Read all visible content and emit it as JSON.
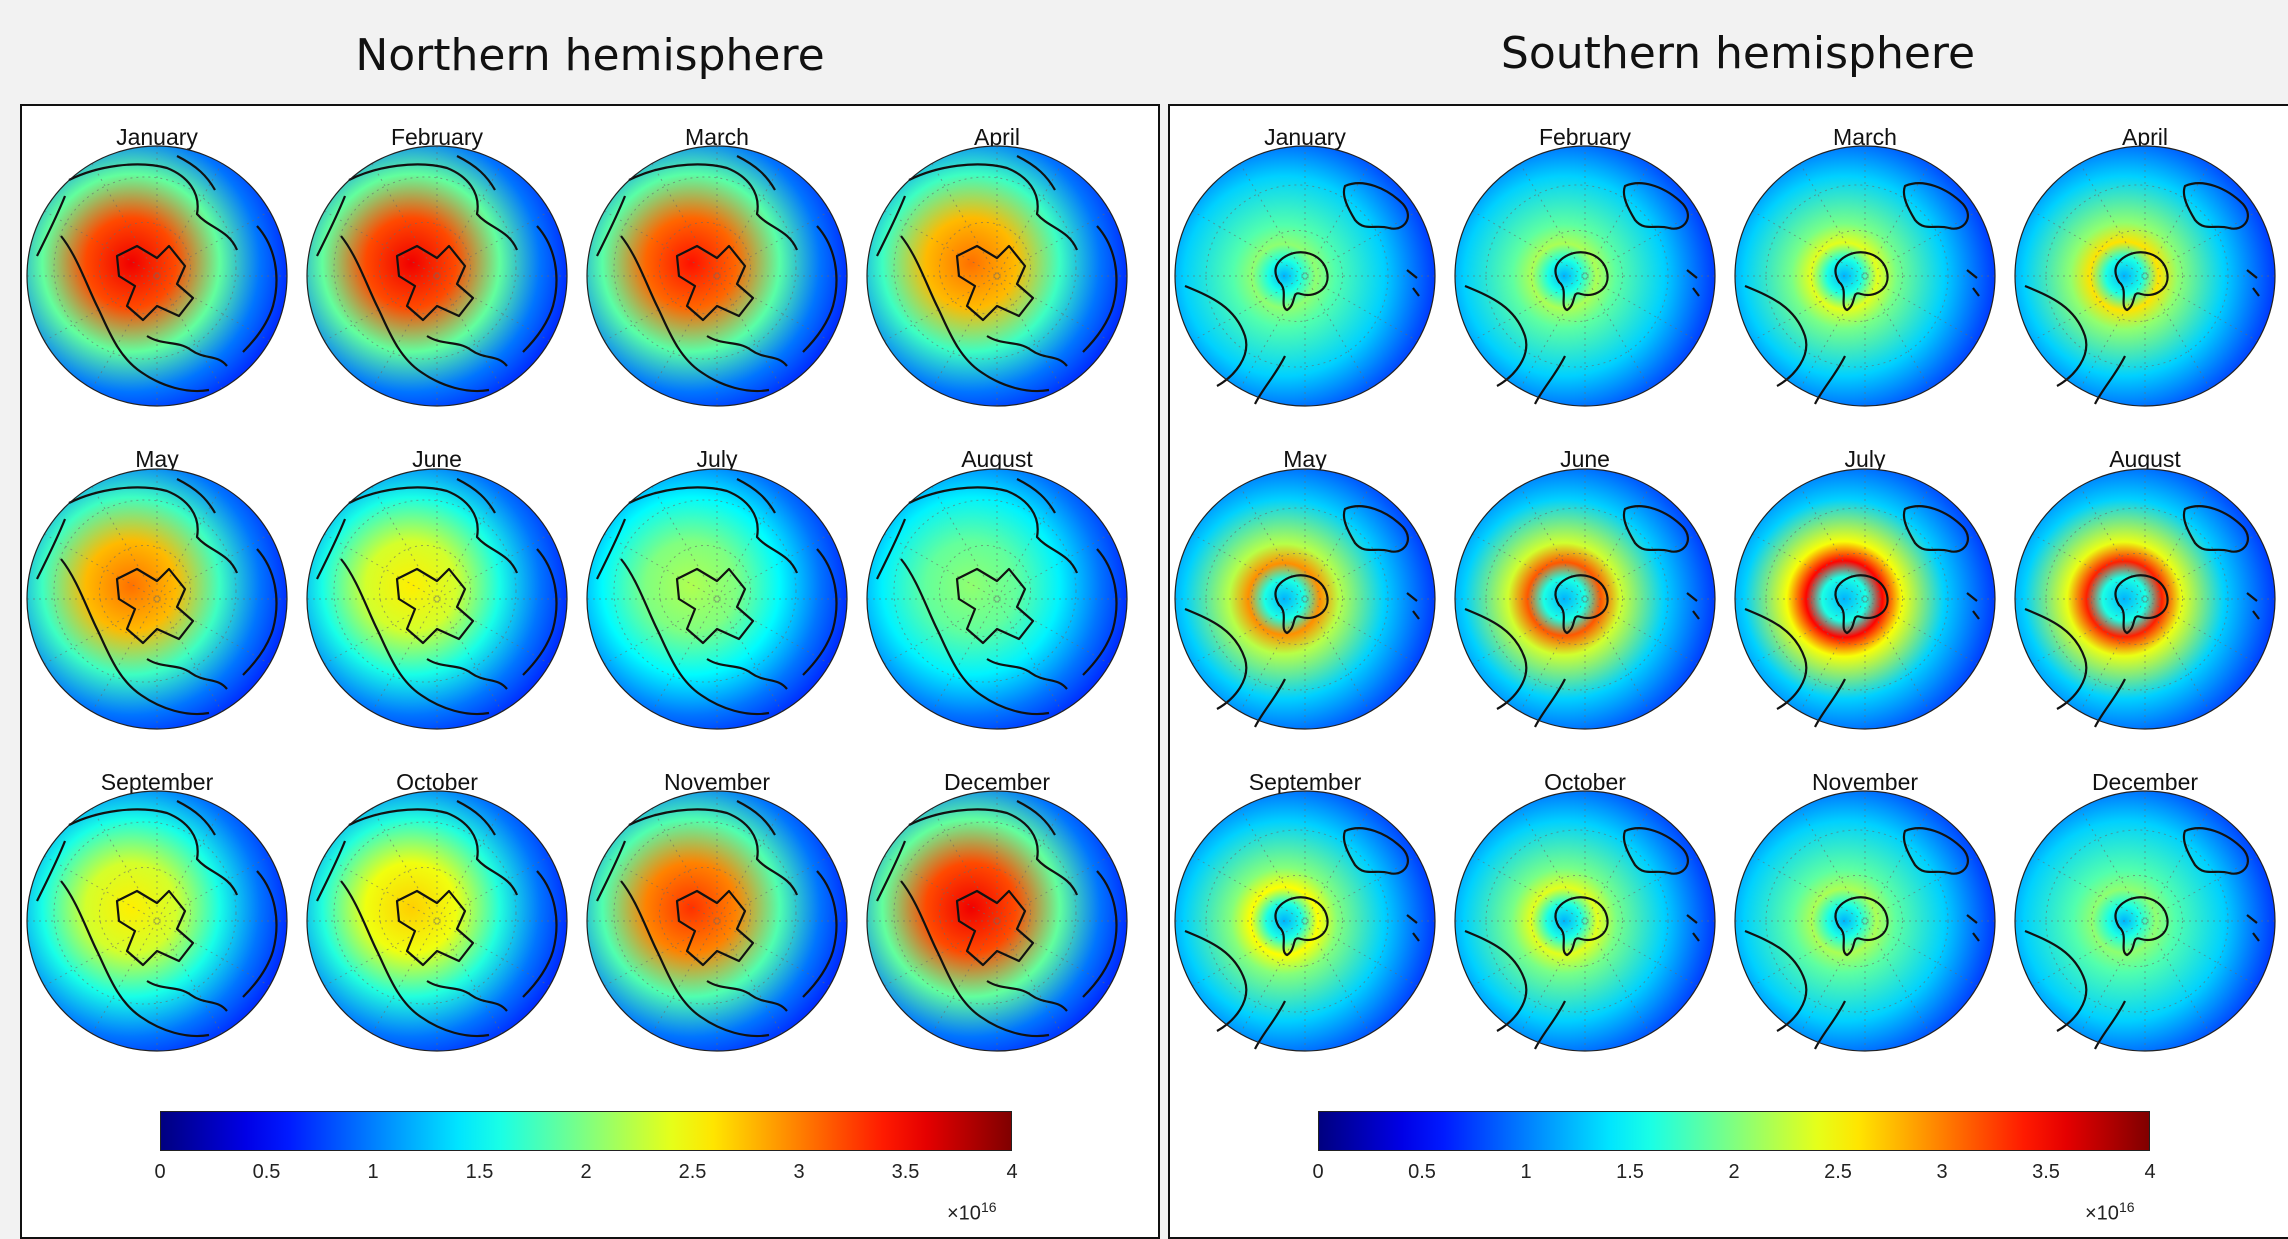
{
  "figure": {
    "left_title": "Northern hemisphere",
    "right_title": "Southern hemisphere"
  },
  "colors": {
    "background": "#f2f2f2",
    "panel": "#ffffff",
    "border": "#111111"
  },
  "chart_data": [
    {
      "type": "heatmap",
      "hemisphere": "Northern hemisphere",
      "panels": [
        "January",
        "February",
        "March",
        "April",
        "May",
        "June",
        "July",
        "August",
        "September",
        "October",
        "November",
        "December"
      ],
      "colorbar": {
        "colormap": "jet",
        "ticks": [
          0,
          0.5,
          1,
          1.5,
          2,
          2.5,
          3,
          3.5,
          4
        ],
        "tick_labels": [
          "0",
          "0.5",
          "1",
          "1.5",
          "2",
          "2.5",
          "3",
          "3.5",
          "4"
        ],
        "range": [
          0,
          4
        ],
        "multiplier_base": "×10",
        "multiplier_exp": "16"
      },
      "relative_intensity": [
        0.95,
        0.95,
        0.9,
        0.75,
        0.75,
        0.55,
        0.4,
        0.35,
        0.55,
        0.6,
        0.85,
        0.95
      ]
    },
    {
      "type": "heatmap",
      "hemisphere": "Southern hemisphere",
      "panels": [
        "January",
        "February",
        "March",
        "April",
        "May",
        "June",
        "July",
        "August",
        "September",
        "October",
        "November",
        "December"
      ],
      "colorbar": {
        "colormap": "jet",
        "ticks": [
          0,
          0.5,
          1,
          1.5,
          2,
          2.5,
          3,
          3.5,
          4
        ],
        "tick_labels": [
          "0",
          "0.5",
          "1",
          "1.5",
          "2",
          "2.5",
          "3",
          "3.5",
          "4"
        ],
        "range": [
          0,
          4
        ],
        "multiplier_base": "×10",
        "multiplier_exp": "16"
      },
      "relative_intensity": [
        0.3,
        0.35,
        0.45,
        0.55,
        0.7,
        0.8,
        0.95,
        0.9,
        0.5,
        0.45,
        0.35,
        0.3
      ]
    }
  ]
}
